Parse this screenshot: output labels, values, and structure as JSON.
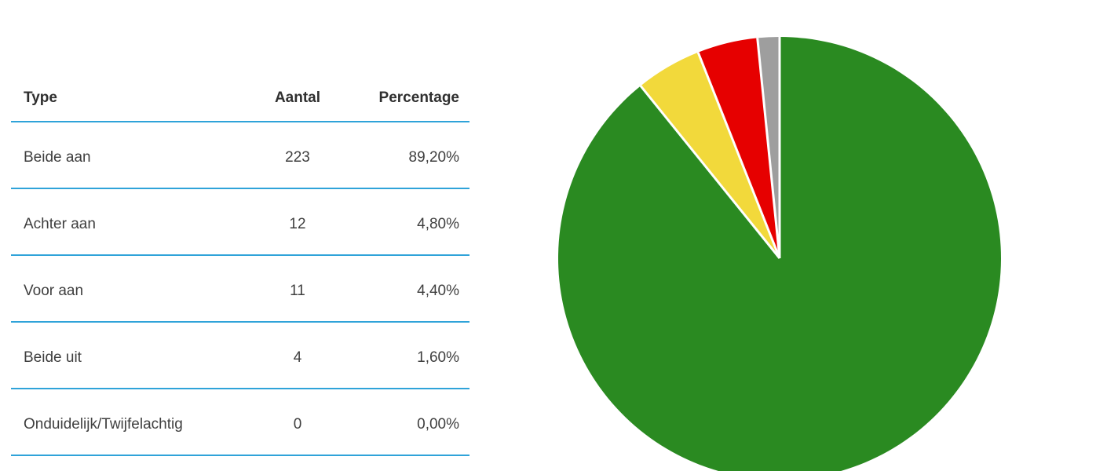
{
  "page": {
    "background_color": "#ffffff"
  },
  "table": {
    "divider_color": "#2fa3d9",
    "header_text_color": "#2f2f2f",
    "row_text_color": "#3f3f3f",
    "columns": [
      {
        "key": "type",
        "label": "Type",
        "align": "left"
      },
      {
        "key": "aantal",
        "label": "Aantal",
        "align": "center"
      },
      {
        "key": "percentage",
        "label": "Percentage",
        "align": "right"
      }
    ],
    "rows": [
      {
        "type": "Beide aan",
        "aantal": "223",
        "percentage": "89,20%"
      },
      {
        "type": "Achter aan",
        "aantal": "12",
        "percentage": "4,80%"
      },
      {
        "type": "Voor aan",
        "aantal": "11",
        "percentage": "4,40%"
      },
      {
        "type": "Beide uit",
        "aantal": "4",
        "percentage": "1,60%"
      },
      {
        "type": "Onduidelijk/Twijfelachtig",
        "aantal": "0",
        "percentage": "0,00%"
      }
    ]
  },
  "chart_data": {
    "type": "pie",
    "title": "",
    "legend": "none",
    "start_angle_deg_from_top": 0,
    "direction": "clockwise",
    "categories": [
      "Beide aan",
      "Achter aan",
      "Voor aan",
      "Beide uit",
      "Onduidelijk/Twijfelachtig"
    ],
    "values": [
      223,
      12,
      11,
      4,
      0
    ],
    "percentages": [
      89.2,
      4.8,
      4.4,
      1.6,
      0.0
    ],
    "colors": [
      "#2a8a21",
      "#f2d93b",
      "#e60000",
      "#9e9e9e",
      null
    ],
    "separator_color": "#ffffff"
  }
}
